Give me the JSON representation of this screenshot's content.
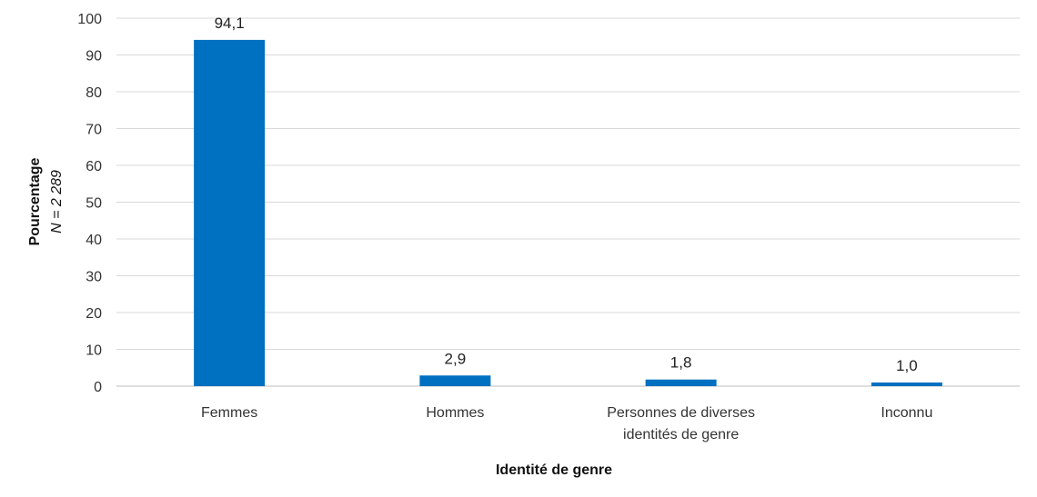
{
  "chart_data": {
    "type": "bar",
    "categories": [
      [
        "Femmes"
      ],
      [
        "Hommes"
      ],
      [
        "Personnes de diverses",
        "identités de genre"
      ],
      [
        "Inconnu"
      ]
    ],
    "values": [
      94.1,
      2.9,
      1.8,
      1.0
    ],
    "value_labels": [
      "94,1",
      "2,9",
      "1,8",
      "1,0"
    ],
    "ylabel": "Pourcentage",
    "ylabel_note": "N = 2 289",
    "xlabel": "Identité de genre",
    "ylim": [
      0,
      100
    ],
    "yticks": [
      0,
      10,
      20,
      30,
      40,
      50,
      60,
      70,
      80,
      90,
      100
    ],
    "grid": true,
    "bar_color": "#0070c0",
    "grid_color": "#d9d9d9"
  }
}
